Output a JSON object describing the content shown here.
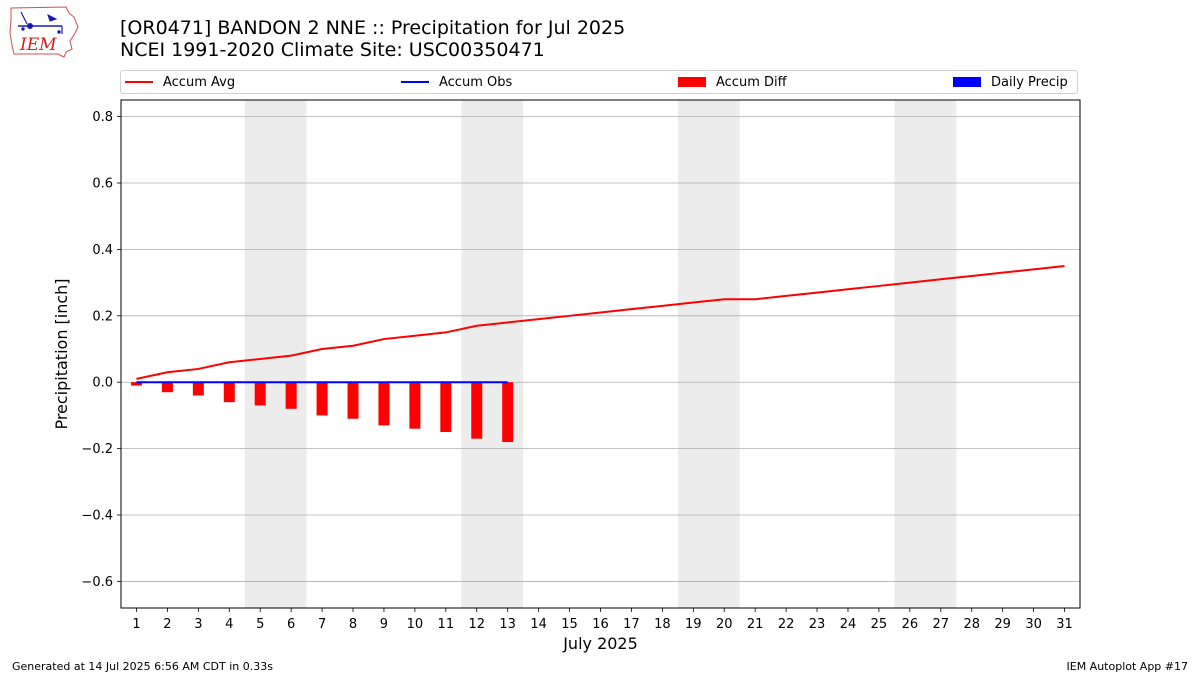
{
  "header": {
    "title_line1": "[OR0471] BANDON 2 NNE :: Precipitation for Jul 2025",
    "title_line2": "NCEI 1991-2020 Climate Site: USC00350471"
  },
  "logo": {
    "text": "IEM"
  },
  "footer": {
    "left": "Generated at 14 Jul 2025 6:56 AM CDT in 0.33s",
    "right": "IEM Autoplot App #17"
  },
  "legend": [
    {
      "label": "Accum Avg",
      "kind": "line",
      "color": "#ff0000"
    },
    {
      "label": "Accum Obs",
      "kind": "line",
      "color": "#0000ff"
    },
    {
      "label": "Accum Diff",
      "kind": "box",
      "color": "#ff0000"
    },
    {
      "label": "Daily Precip",
      "kind": "box",
      "color": "#0000ff"
    }
  ],
  "chart_data": {
    "type": "bar",
    "xlabel": "July 2025",
    "ylabel": "Precipitation [inch]",
    "xlim": [
      0.5,
      31.5
    ],
    "ylim": [
      -0.68,
      0.85
    ],
    "yticks": [
      -0.6,
      -0.4,
      -0.2,
      0.0,
      0.2,
      0.4,
      0.6,
      0.8
    ],
    "ytick_labels": [
      "−0.6",
      "−0.4",
      "−0.2",
      "0.0",
      "0.2",
      "0.4",
      "0.6",
      "0.8"
    ],
    "xticks": [
      1,
      2,
      3,
      4,
      5,
      6,
      7,
      8,
      9,
      10,
      11,
      12,
      13,
      14,
      15,
      16,
      17,
      18,
      19,
      20,
      21,
      22,
      23,
      24,
      25,
      26,
      27,
      28,
      29,
      30,
      31
    ],
    "grid": "horizontal",
    "weekend_shading": [
      [
        4.5,
        6.5
      ],
      [
        11.5,
        13.5
      ],
      [
        18.5,
        20.5
      ],
      [
        25.5,
        27.5
      ]
    ],
    "series": [
      {
        "name": "Accum Avg",
        "type": "line",
        "color": "#ff0000",
        "x": [
          1,
          2,
          3,
          4,
          5,
          6,
          7,
          8,
          9,
          10,
          11,
          12,
          13,
          14,
          15,
          16,
          17,
          18,
          19,
          20,
          21,
          22,
          23,
          24,
          25,
          26,
          27,
          28,
          29,
          30,
          31
        ],
        "values": [
          0.01,
          0.03,
          0.04,
          0.06,
          0.07,
          0.08,
          0.1,
          0.11,
          0.13,
          0.14,
          0.15,
          0.17,
          0.18,
          0.19,
          0.2,
          0.21,
          0.22,
          0.23,
          0.24,
          0.25,
          0.25,
          0.26,
          0.27,
          0.28,
          0.29,
          0.3,
          0.31,
          0.32,
          0.33,
          0.34,
          0.35
        ]
      },
      {
        "name": "Accum Obs",
        "type": "line",
        "color": "#0000ff",
        "x": [
          1,
          2,
          3,
          4,
          5,
          6,
          7,
          8,
          9,
          10,
          11,
          12,
          13
        ],
        "values": [
          0,
          0,
          0,
          0,
          0,
          0,
          0,
          0,
          0,
          0,
          0,
          0,
          0
        ]
      },
      {
        "name": "Accum Diff",
        "type": "bar",
        "color": "#ff0000",
        "x": [
          1,
          2,
          3,
          4,
          5,
          6,
          7,
          8,
          9,
          10,
          11,
          12,
          13
        ],
        "values": [
          -0.01,
          -0.03,
          -0.04,
          -0.06,
          -0.07,
          -0.08,
          -0.1,
          -0.11,
          -0.13,
          -0.14,
          -0.15,
          -0.17,
          -0.18
        ]
      },
      {
        "name": "Daily Precip",
        "type": "bar",
        "color": "#0000ff",
        "x": [
          1,
          2,
          3,
          4,
          5,
          6,
          7,
          8,
          9,
          10,
          11,
          12,
          13
        ],
        "values": [
          0,
          0,
          0,
          0,
          0,
          0,
          0,
          0,
          0,
          0,
          0,
          0,
          0
        ]
      }
    ]
  }
}
